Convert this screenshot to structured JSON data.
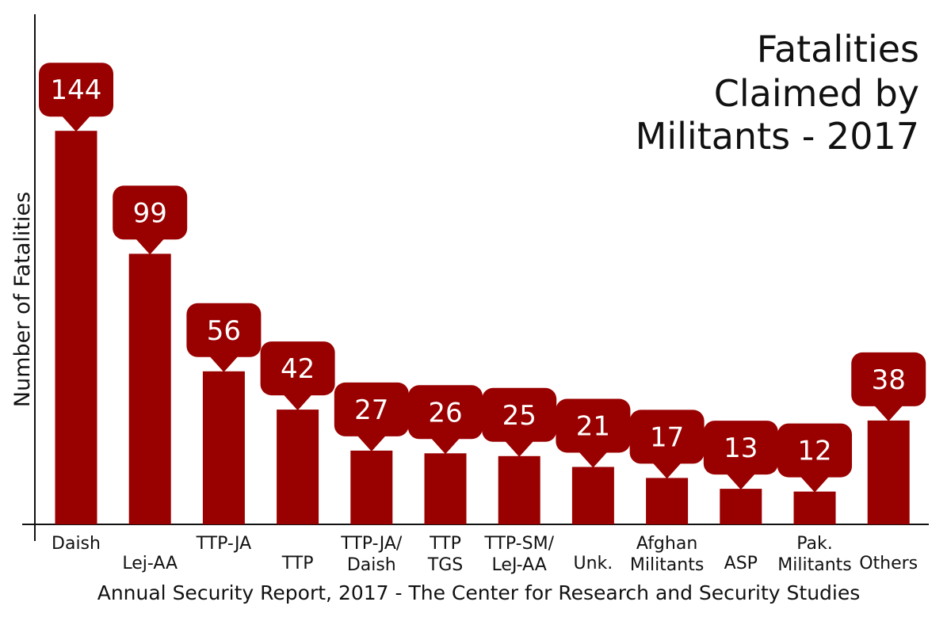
{
  "chart_data": {
    "type": "bar",
    "title_lines": [
      "Fatalities",
      "Claimed by",
      "Militants - 2017"
    ],
    "ylabel": "Number of Fatalities",
    "source": "Annual Security Report, 2017 - The Center for Research and Security Studies",
    "bar_color": "#990000",
    "ylim": [
      0,
      160
    ],
    "categories": [
      [
        "Daish"
      ],
      [
        "Lej-AA"
      ],
      [
        "TTP-JA"
      ],
      [
        "TTP"
      ],
      [
        "TTP-JA/",
        "Daish"
      ],
      [
        "TTP",
        "TGS"
      ],
      [
        "TTP-SM/",
        "LeJ-AA"
      ],
      [
        "Unk."
      ],
      [
        "Afghan",
        "Militants"
      ],
      [
        "ASP"
      ],
      [
        "Pak.",
        "Militants"
      ],
      [
        "Others"
      ]
    ],
    "values": [
      144,
      99,
      56,
      42,
      27,
      26,
      25,
      21,
      17,
      13,
      12,
      38
    ]
  }
}
